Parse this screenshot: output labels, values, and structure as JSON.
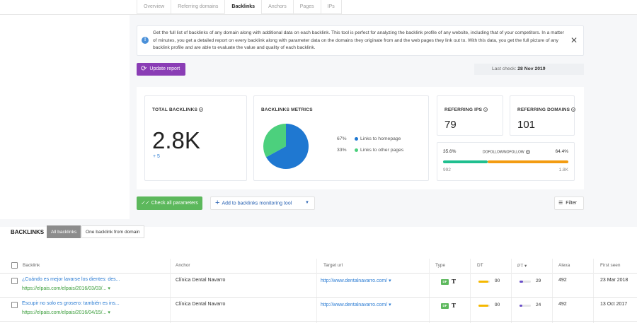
{
  "tabs": [
    {
      "label": "Overview"
    },
    {
      "label": "Referring domains"
    },
    {
      "label": "Backlinks"
    },
    {
      "label": "Anchors"
    },
    {
      "label": "Pages"
    },
    {
      "label": "IPs"
    }
  ],
  "info": {
    "text": "Get the full list of backlinks of any domain along with additional data on each backlink. This tool is perfect for analyzing the backlink profile of any website, including that of your competitors. In a matter of minutes, you get a detailed report on every backlink along with parameter data on the domains they originate from and the web pages they link out to. With this data, you get the full picture of any backlink profile and are able to evaluate the value and quality of each backlink.",
    "close": "✕",
    "icon": "!"
  },
  "update": {
    "label": "Update report",
    "icon": "⟳"
  },
  "last_check": {
    "label": "Last check:",
    "date": "28 Nov 2019"
  },
  "total": {
    "title": "TOTAL BACKLINKS",
    "value": "2.8K",
    "delta": "+ 5",
    "help": "?"
  },
  "metrics": {
    "title": "BACKLINKS METRICS",
    "help": "?",
    "items": [
      {
        "pct": "67%",
        "label": "Links to homepage",
        "value": 67,
        "color": "#1f78d1"
      },
      {
        "pct": "33%",
        "label": "Links to other pages",
        "value": 33,
        "color": "#4cd07d"
      }
    ]
  },
  "ips": {
    "title": "REFERRING IPS",
    "value": "79",
    "help": "?"
  },
  "domains": {
    "title": "REFERRING DOMAINS",
    "value": "101",
    "help": "?"
  },
  "dofollow": {
    "left_pct": "35.6%",
    "title": "DOFOLLOW/NOFOLLOW",
    "right_pct": "64.4%",
    "left_count": "992",
    "right_count": "1.8K",
    "help": "?",
    "left_frac": 0.356,
    "left_color": "#1fbf8f",
    "right_color": "#f39c12"
  },
  "actions": {
    "check": "Check all parameters",
    "check_icon": "✓✓",
    "add": "Add to backlinks monitoring tool",
    "add_icon": "+",
    "add_caret": "▼",
    "filter": "Filter",
    "filter_icon": "☰"
  },
  "backlinks": {
    "title": "BACKLINKS",
    "seg_all": "All backlinks",
    "seg_one": "One backlink from domain"
  },
  "columns": {
    "backlink": "Backlink",
    "anchor": "Anchor",
    "target": "Target url",
    "type": "Type",
    "dt": "DT",
    "pt": "PT ▾",
    "alexa": "Alexa",
    "first_seen": "First seen"
  },
  "rows": [
    {
      "title": "¿Cuándo es mejor lavarse los dientes: des...",
      "url": "https://elpais.com/elpais/2016/03/03/...",
      "anchor": "Clínica Dental Navarro",
      "target": "http://www.dentalnavarro.com/",
      "type_badge": "DF",
      "type_icon": "T",
      "dt": "90",
      "dt_frac": 0.9,
      "pt": "29",
      "pt_frac": 0.29,
      "alexa": "492",
      "first_seen": "23 Mar 2018",
      "caret": "▾",
      "target_caret": "▾"
    },
    {
      "title": "Escupir no solo es grosero: también es ins...",
      "url": "https://elpais.com/elpais/2016/04/15/...",
      "anchor": "Clínica Dental Navarro",
      "target": "http://www.dentalnavarro.com/",
      "type_badge": "DF",
      "type_icon": "T",
      "dt": "90",
      "dt_frac": 0.9,
      "pt": "24",
      "pt_frac": 0.24,
      "alexa": "492",
      "first_seen": "13 Oct 2017",
      "caret": "▾",
      "target_caret": "▾"
    }
  ],
  "colors": {
    "dt_bar": "#f5b800",
    "pt_bar": "#6a4fc9"
  }
}
